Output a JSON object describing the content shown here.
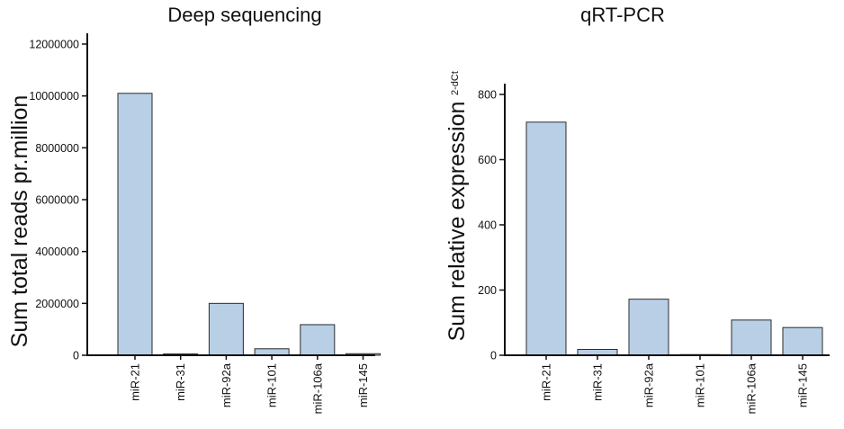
{
  "colors": {
    "bar_fill": "#b8cfe6",
    "bar_stroke": "#2b2b2b",
    "axis": "#111111"
  },
  "chart_data": [
    {
      "type": "bar",
      "title": "Deep sequencing",
      "xlabel": "",
      "ylabel": "Sum total reads pr.million",
      "categories": [
        "miR-21",
        "miR-31",
        "miR-92a",
        "miR-101",
        "miR-106a",
        "miR-145"
      ],
      "values": [
        10100000,
        50000,
        2000000,
        250000,
        1180000,
        60000
      ],
      "ylim": [
        0,
        12000000
      ],
      "yticks": [
        0,
        2000000,
        4000000,
        6000000,
        8000000,
        10000000,
        12000000
      ],
      "ytick_labels": [
        "0",
        "2000000",
        "4000000",
        "6000000",
        "8000000",
        "10000000",
        "12000000"
      ],
      "grid": false
    },
    {
      "type": "bar",
      "title": "qRT-PCR",
      "xlabel": "",
      "ylabel": "Sum relative expression",
      "ylabel_superscript": "2-dCt",
      "categories": [
        "miR-21",
        "miR-31",
        "miR-92a",
        "miR-101",
        "miR-106a",
        "miR-145"
      ],
      "values": [
        715,
        18,
        172,
        2,
        108,
        85
      ],
      "ylim": [
        0,
        800
      ],
      "yticks": [
        0,
        200,
        400,
        600,
        800
      ],
      "ytick_labels": [
        "0",
        "200",
        "400",
        "600",
        "800"
      ],
      "grid": false
    }
  ]
}
